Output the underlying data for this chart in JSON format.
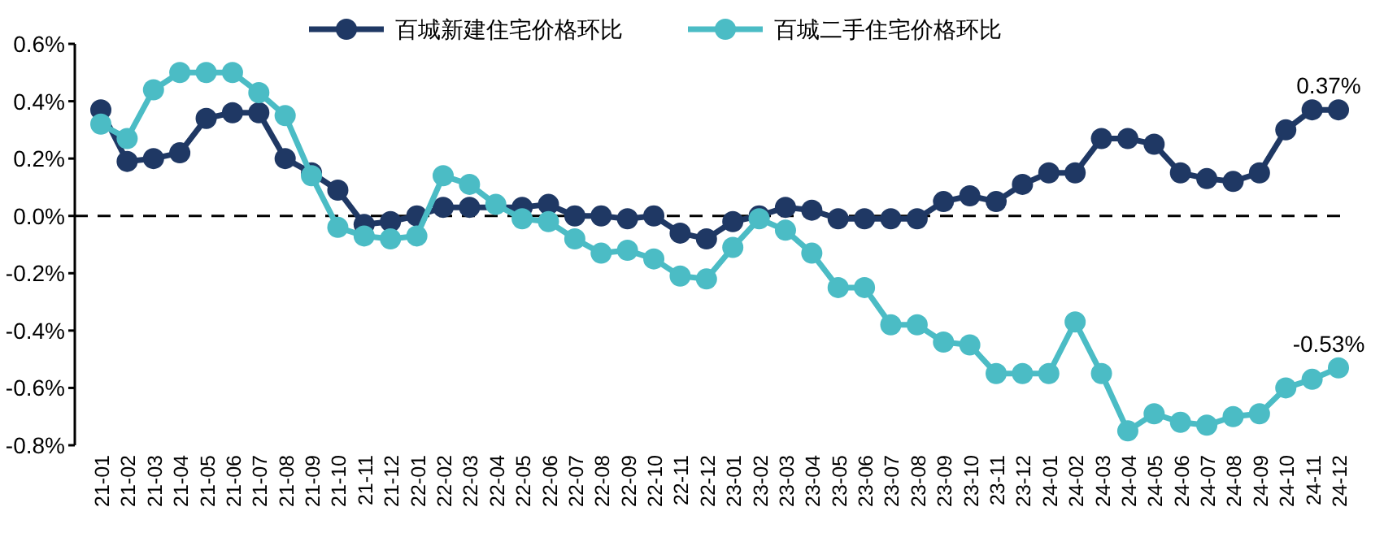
{
  "chart_data": {
    "type": "line",
    "categories": [
      "21-01",
      "21-02",
      "21-03",
      "21-04",
      "21-05",
      "21-06",
      "21-07",
      "21-08",
      "21-09",
      "21-10",
      "21-11",
      "21-12",
      "22-01",
      "22-02",
      "22-03",
      "22-04",
      "22-05",
      "22-06",
      "22-07",
      "22-08",
      "22-09",
      "22-10",
      "22-11",
      "22-12",
      "23-01",
      "23-02",
      "23-03",
      "23-04",
      "23-05",
      "23-06",
      "23-07",
      "23-08",
      "23-09",
      "23-10",
      "23-11",
      "23-12",
      "24-01",
      "24-02",
      "24-03",
      "24-04",
      "24-05",
      "24-06",
      "24-07",
      "24-08",
      "24-09",
      "24-10",
      "24-11",
      "24-12"
    ],
    "series": [
      {
        "name": "百城新建住宅价格环比",
        "color": "#1f3864",
        "values": [
          0.37,
          0.19,
          0.2,
          0.22,
          0.34,
          0.36,
          0.36,
          0.2,
          0.15,
          0.09,
          -0.03,
          -0.02,
          0.0,
          0.03,
          0.03,
          null,
          0.03,
          0.04,
          0.0,
          0.0,
          -0.01,
          0.0,
          -0.06,
          -0.08,
          -0.02,
          0.0,
          0.03,
          0.02,
          -0.01,
          -0.01,
          -0.01,
          -0.01,
          0.05,
          0.07,
          0.05,
          0.11,
          0.15,
          0.15,
          0.27,
          0.27,
          0.25,
          0.15,
          0.13,
          0.12,
          0.15,
          0.3,
          0.37,
          0.37
        ]
      },
      {
        "name": "百城二手住宅价格环比",
        "color": "#4bbcc5",
        "values": [
          0.32,
          0.27,
          0.44,
          0.5,
          0.5,
          0.5,
          0.43,
          0.35,
          0.14,
          -0.04,
          -0.07,
          -0.08,
          -0.07,
          0.14,
          0.11,
          0.04,
          -0.01,
          -0.02,
          -0.08,
          -0.13,
          -0.12,
          -0.15,
          -0.21,
          -0.22,
          -0.11,
          -0.01,
          -0.05,
          -0.13,
          -0.25,
          -0.25,
          -0.38,
          -0.38,
          -0.44,
          -0.45,
          -0.55,
          -0.55,
          -0.55,
          -0.37,
          -0.55,
          -0.75,
          -0.69,
          -0.72,
          -0.73,
          -0.7,
          -0.69,
          -0.6,
          -0.57,
          -0.53
        ]
      }
    ],
    "ylim": [
      -0.8,
      0.6
    ],
    "yticks": [
      {
        "value": -0.8,
        "label": "-0.8%"
      },
      {
        "value": -0.6,
        "label": "-0.6%"
      },
      {
        "value": -0.4,
        "label": "-0.4%"
      },
      {
        "value": -0.2,
        "label": "-0.2%"
      },
      {
        "value": 0,
        "label": "0.0%"
      },
      {
        "value": 0.2,
        "label": "0.2%"
      },
      {
        "value": 0.4,
        "label": "0.4%"
      },
      {
        "value": 0.6,
        "label": "0.6%"
      }
    ],
    "ref_lines": [
      {
        "axis": "y",
        "value": 0,
        "color": "#000000",
        "line_style": "dashed"
      }
    ],
    "annotations": [
      {
        "text": "0.37%",
        "x": "24-12",
        "y": 0.37
      },
      {
        "text": "-0.53%",
        "x": "24-12",
        "y": -0.53
      }
    ],
    "legend": "top",
    "marker": "circle",
    "line_style": "solid"
  }
}
